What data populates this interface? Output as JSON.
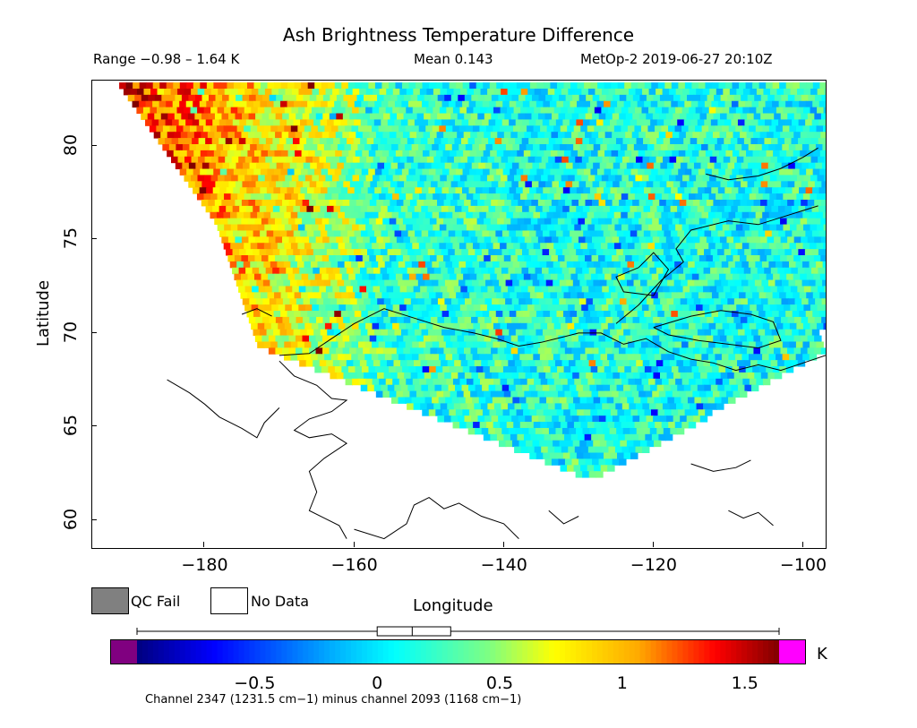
{
  "title": "Ash Brightness Temperature Difference",
  "header": {
    "range": "Range −0.98 – 1.64 K",
    "mean": "Mean 0.143",
    "satellite_time": "MetOp-2 2019-06-27 20:10Z"
  },
  "axes": {
    "xlabel": "Longitude",
    "ylabel": "Latitude",
    "x_range": [
      -195,
      -97
    ],
    "y_range": [
      58.5,
      83.5
    ],
    "x_ticks": [
      {
        "value": -180,
        "label": "−180"
      },
      {
        "value": -160,
        "label": "−160"
      },
      {
        "value": -140,
        "label": "−140"
      },
      {
        "value": -120,
        "label": "−120"
      },
      {
        "value": -100,
        "label": "−100"
      }
    ],
    "y_ticks": [
      {
        "value": 60,
        "label": "60"
      },
      {
        "value": 65,
        "label": "65"
      },
      {
        "value": 70,
        "label": "70"
      },
      {
        "value": 75,
        "label": "75"
      },
      {
        "value": 80,
        "label": "80"
      }
    ]
  },
  "legend": {
    "qc_fail_label": "QC Fail",
    "qc_fail_color": "#808080",
    "no_data_label": "No Data",
    "no_data_color": "#ffffff"
  },
  "colorbar": {
    "min": -0.98,
    "max": 1.64,
    "unit": "K",
    "under_color": "#800080",
    "over_color": "#ff00ff",
    "ticks": [
      {
        "value": -0.5,
        "label": "−0.5"
      },
      {
        "value": 0,
        "label": "0"
      },
      {
        "value": 0.5,
        "label": "0.5"
      },
      {
        "value": 1,
        "label": "1"
      },
      {
        "value": 1.5,
        "label": "1.5"
      }
    ],
    "boxplot": {
      "whisker_low": -0.98,
      "q1": 0.0,
      "median": 0.143,
      "q3": 0.3,
      "whisker_high": 1.64
    }
  },
  "footer": "Channel 2347 (1231.5 cm−1) minus channel 2093 (1168 cm−1)"
}
